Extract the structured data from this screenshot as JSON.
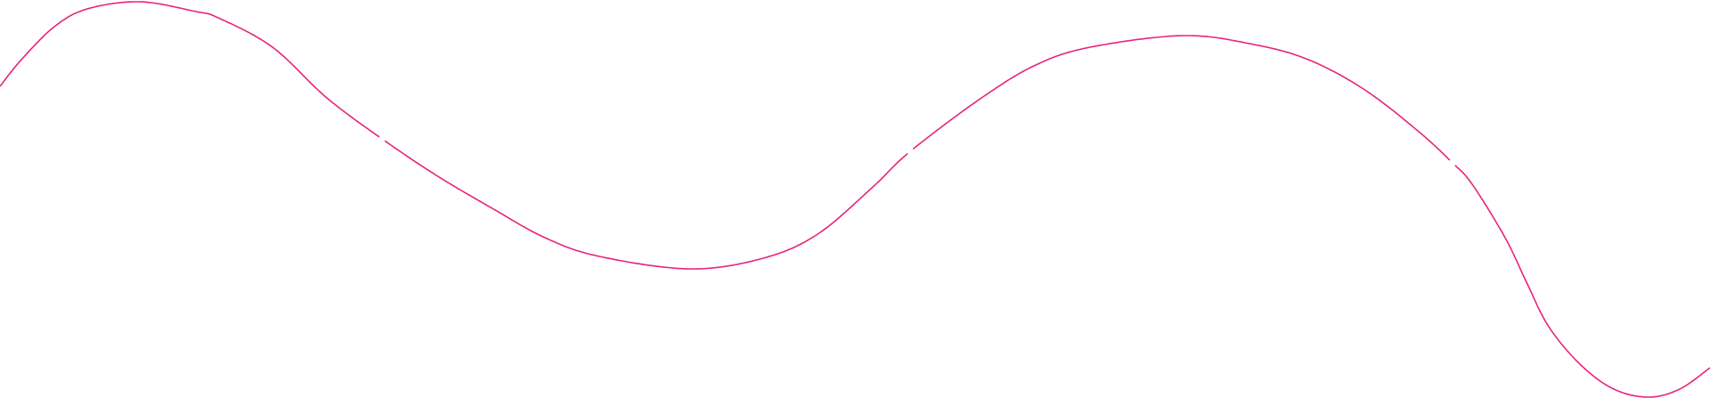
{
  "decoration": {
    "type": "wavy-line",
    "stroke_color": "#e8237c",
    "background_color": "#ffffff"
  }
}
